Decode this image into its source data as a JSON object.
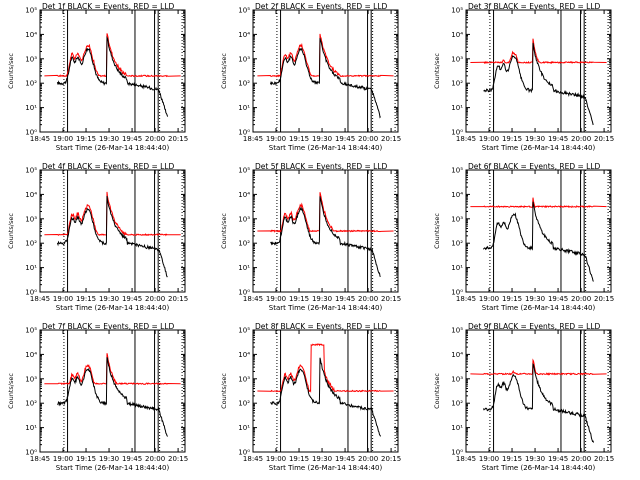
{
  "common": {
    "legend_text": "BLACK = Events, RED = LLD",
    "xlabel": "Start Time (26-Mar-14 18:44:40)",
    "ylabel": "Counts/sec",
    "x_tick_labels": [
      "18:45",
      "19:00",
      "19:15",
      "19:30",
      "19:45",
      "20:00",
      "20:15"
    ],
    "y_tick_labels": [
      "10⁰",
      "10¹",
      "10²",
      "10³",
      "10⁴",
      "10⁵"
    ],
    "colors": {
      "events": "#000000",
      "lld": "#ff0000",
      "axes": "#000000"
    }
  },
  "chart_data": [
    {
      "type": "line",
      "title": "Det 1f",
      "ylim_log10": [
        0,
        5
      ],
      "xlim_min": [
        18.74,
        20.4
      ],
      "series": [
        {
          "name": "BLACK = Events"
        },
        {
          "name": "RED = LLD",
          "baseline_log10": 2.3
        }
      ]
    },
    {
      "type": "line",
      "title": "Det 2f",
      "ylim_log10": [
        0,
        5
      ],
      "xlim_min": [
        18.74,
        20.4
      ],
      "series": [
        {
          "name": "BLACK = Events"
        },
        {
          "name": "RED = LLD",
          "baseline_log10": 2.3
        }
      ]
    },
    {
      "type": "line",
      "title": "Det 3f",
      "ylim_log10": [
        0,
        5
      ],
      "xlim_min": [
        18.74,
        20.4
      ],
      "series": [
        {
          "name": "BLACK = Events"
        },
        {
          "name": "RED = LLD",
          "baseline_log10": 2.85
        }
      ]
    },
    {
      "type": "line",
      "title": "Det 4f",
      "ylim_log10": [
        0,
        5
      ],
      "xlim_min": [
        18.74,
        20.4
      ],
      "series": [
        {
          "name": "BLACK = Events"
        },
        {
          "name": "RED = LLD",
          "baseline_log10": 2.35
        }
      ]
    },
    {
      "type": "line",
      "title": "Det 5f",
      "ylim_log10": [
        0,
        5
      ],
      "xlim_min": [
        18.74,
        20.4
      ],
      "series": [
        {
          "name": "BLACK = Events"
        },
        {
          "name": "RED = LLD",
          "baseline_log10": 2.5
        }
      ]
    },
    {
      "type": "line",
      "title": "Det 6f",
      "ylim_log10": [
        0,
        5
      ],
      "xlim_min": [
        18.74,
        20.4
      ],
      "series": [
        {
          "name": "BLACK = Events"
        },
        {
          "name": "RED = LLD",
          "baseline_log10": 3.5
        }
      ]
    },
    {
      "type": "line",
      "title": "Det 7f",
      "ylim_log10": [
        0,
        5
      ],
      "xlim_min": [
        18.74,
        20.4
      ],
      "series": [
        {
          "name": "BLACK = Events"
        },
        {
          "name": "RED = LLD",
          "baseline_log10": 2.8
        }
      ]
    },
    {
      "type": "line",
      "title": "Det 8f",
      "ylim_log10": [
        0,
        5
      ],
      "xlim_min": [
        18.74,
        20.4
      ],
      "series": [
        {
          "name": "BLACK = Events"
        },
        {
          "name": "RED = LLD",
          "baseline_log10": 2.5
        }
      ]
    },
    {
      "type": "line",
      "title": "Det 9f",
      "ylim_log10": [
        0,
        5
      ],
      "xlim_min": [
        18.74,
        20.4
      ],
      "series": [
        {
          "name": "BLACK = Events"
        },
        {
          "name": "RED = LLD",
          "baseline_log10": 3.2
        }
      ]
    }
  ]
}
